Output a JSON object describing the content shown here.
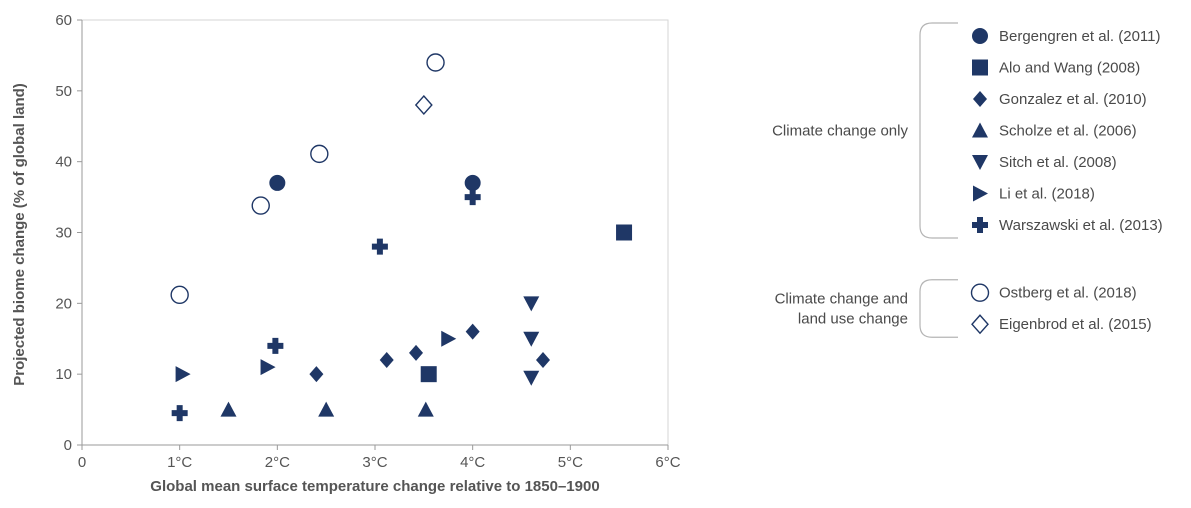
{
  "chart_data": {
    "type": "scatter",
    "title": "",
    "xlabel": "Global mean surface temperature change  relative to 1850–1900",
    "ylabel": "Projected biome change (% of global land)",
    "xlim": [
      0,
      6
    ],
    "ylim": [
      0,
      60
    ],
    "x_ticks": [
      0,
      1,
      2,
      3,
      4,
      5,
      6
    ],
    "x_tick_labels": [
      "0",
      "1°C",
      "2°C",
      "3°C",
      "4°C",
      "5°C",
      "6°C"
    ],
    "y_ticks": [
      0,
      10,
      20,
      30,
      40,
      50,
      60
    ],
    "y_tick_labels": [
      "0",
      "10",
      "20",
      "30",
      "40",
      "50",
      "60"
    ],
    "grid": false,
    "legend_position": "right",
    "colors": {
      "marker": "#1f3766",
      "axis": "#9a9a9a",
      "bracket": "#b5b5b5"
    },
    "legend_groups": [
      {
        "label": [
          "Climate change only"
        ],
        "series": [
          0,
          1,
          2,
          3,
          4,
          5,
          6
        ]
      },
      {
        "label": [
          "Climate change and",
          "land use change"
        ],
        "series": [
          7,
          8
        ]
      }
    ],
    "series": [
      {
        "name": "Bergengren et al. (2011)",
        "marker": "circle-filled",
        "points": [
          [
            2.0,
            37
          ],
          [
            4.0,
            37
          ]
        ]
      },
      {
        "name": "Alo and Wang (2008)",
        "marker": "square",
        "points": [
          [
            3.55,
            10
          ],
          [
            5.55,
            30
          ]
        ]
      },
      {
        "name": "Gonzalez et al. (2010)",
        "marker": "diamond-filled",
        "points": [
          [
            2.4,
            10
          ],
          [
            3.12,
            12
          ],
          [
            3.42,
            13
          ],
          [
            4.0,
            16
          ],
          [
            4.72,
            12
          ]
        ]
      },
      {
        "name": "Scholze et al. (2006)",
        "marker": "triangle-up",
        "points": [
          [
            1.5,
            5
          ],
          [
            2.5,
            5
          ],
          [
            3.52,
            5
          ]
        ]
      },
      {
        "name": "Sitch et al. (2008)",
        "marker": "triangle-down",
        "points": [
          [
            4.6,
            20
          ],
          [
            4.6,
            15
          ],
          [
            4.6,
            9.5
          ]
        ]
      },
      {
        "name": "Li et al. (2018)",
        "marker": "triangle-right",
        "points": [
          [
            1.03,
            10
          ],
          [
            1.9,
            11
          ],
          [
            3.75,
            15
          ]
        ]
      },
      {
        "name": "Warszawski et al. (2013)",
        "marker": "plus",
        "points": [
          [
            1.0,
            4.5
          ],
          [
            1.98,
            14
          ],
          [
            3.05,
            28
          ],
          [
            4.0,
            35
          ]
        ]
      },
      {
        "name": "Ostberg et al. (2018)",
        "marker": "circle-open",
        "points": [
          [
            1.0,
            21.2
          ],
          [
            1.83,
            33.8
          ],
          [
            2.43,
            41.1
          ],
          [
            3.62,
            54
          ]
        ]
      },
      {
        "name": "Eigenbrod et al. (2015)",
        "marker": "diamond-open",
        "points": [
          [
            3.5,
            48
          ]
        ]
      }
    ]
  }
}
